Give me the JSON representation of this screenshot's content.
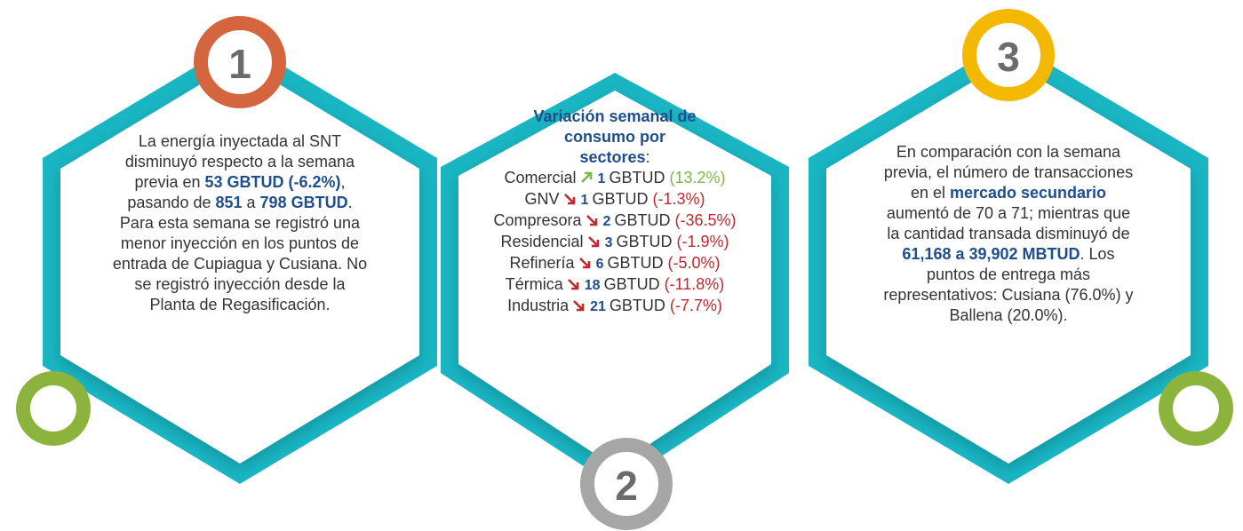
{
  "panels": [
    {
      "number": "1",
      "paragraphs": [
        [
          "La energía inyectada al SNT disminuyó respecto a la semana previa en ",
          "53 GBTUD (-6.2%)",
          ", pasando de ",
          "851",
          " a ",
          "798 GBTUD",
          "."
        ],
        [
          "Para esta semana se registró una menor inyección en los puntos de entrada de Cupiagua y Cusiana. No se registró inyección desde la Planta de Regasificación."
        ]
      ]
    },
    {
      "number": "2",
      "heading": [
        "Variación semanal de consumo por sectores",
        ":"
      ],
      "sectors": [
        {
          "name": "Comercial",
          "trend": "up",
          "value": 1,
          "unit": "GBTUD",
          "change": "(13.2%)"
        },
        {
          "name": "GNV",
          "trend": "down",
          "value": 1,
          "unit": "GBTUD",
          "change": "(-1.3%)"
        },
        {
          "name": "Compresora",
          "trend": "down",
          "value": 2,
          "unit": "GBTUD",
          "change": "(-36.5%)"
        },
        {
          "name": "Residencial",
          "trend": "down",
          "value": 3,
          "unit": "GBTUD",
          "change": "(-1.9%)"
        },
        {
          "name": "Refinería",
          "trend": "down",
          "value": 6,
          "unit": "GBTUD",
          "change": "(-5.0%)"
        },
        {
          "name": "Térmica",
          "trend": "down",
          "value": 18,
          "unit": "GBTUD",
          "change": "(-11.8%)"
        },
        {
          "name": "Industria",
          "trend": "down",
          "value": 21,
          "unit": "GBTUD",
          "change": "(-7.7%)"
        }
      ]
    },
    {
      "number": "3",
      "paragraphs": [
        [
          "En comparación con la semana previa, el número de transacciones en el ",
          "mercado secundario",
          " aumentó de 70 a 71; mientras que la cantidad transada disminuyó de ",
          "61,168 a 39,902  MBTUD",
          ". Los puntos de entrega más representativos: Cusiana (76.0%) y Ballena (20.0%)."
        ]
      ]
    }
  ]
}
